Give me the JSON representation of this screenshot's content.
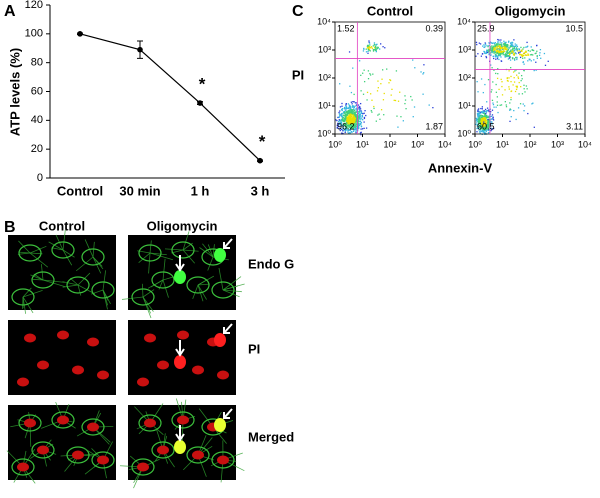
{
  "panels": {
    "a": "A",
    "b": "B",
    "c": "C"
  },
  "chart_data": {
    "type": "line",
    "y_label": "ATP levels (%)",
    "categories": [
      "Control",
      "30 min",
      "1 h",
      "3 h"
    ],
    "values": [
      100,
      89,
      52,
      12
    ],
    "errors": [
      0.5,
      6,
      1,
      0.5
    ],
    "point_labels": [
      null,
      null,
      "*",
      "*"
    ],
    "ylim": [
      0,
      120
    ],
    "yticks": [
      0,
      20,
      40,
      60,
      80,
      100,
      120
    ],
    "color": "#000000"
  },
  "flow_cytometry": {
    "y_label": "PI",
    "x_label": "Annexin-V",
    "log_scale": true,
    "xlim": [
      1,
      10000
    ],
    "ylim": [
      1,
      10000
    ],
    "ticks": [
      {
        "value": 1,
        "label": "10⁰"
      },
      {
        "value": 10,
        "label": "10¹"
      },
      {
        "value": 100,
        "label": "10²"
      },
      {
        "value": 1000,
        "label": "10³"
      },
      {
        "value": 10000,
        "label": "10⁴"
      }
    ],
    "plots": [
      {
        "title": "Control",
        "quadrants": [
          "1.52",
          "0.39",
          "96.2",
          "1.87"
        ]
      },
      {
        "title": "Oligomycin",
        "quadrants": [
          "25.9",
          "10.5",
          "60.5",
          "3.11"
        ]
      }
    ]
  },
  "micrographs": {
    "columns": [
      "Control",
      "Oligomycin"
    ],
    "rows": [
      "Endo G",
      "PI",
      "Merged"
    ]
  }
}
